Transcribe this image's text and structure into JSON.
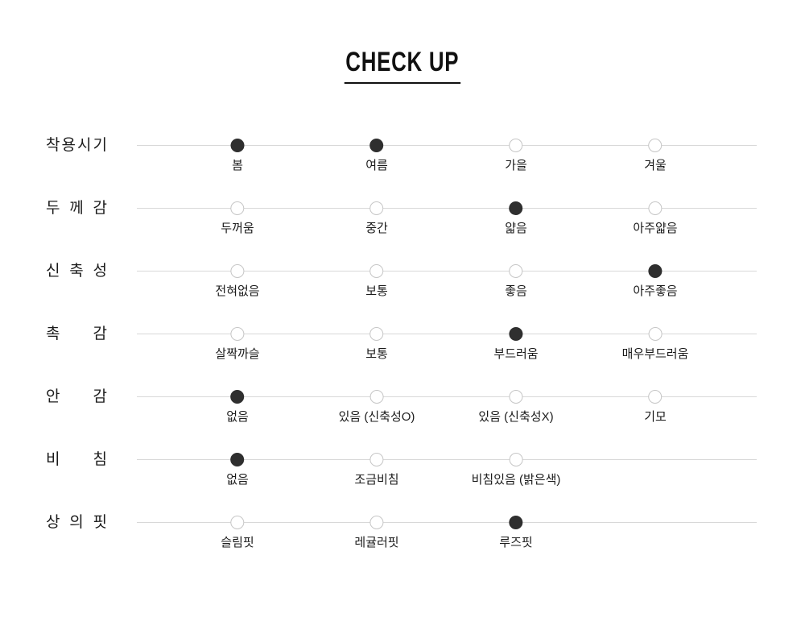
{
  "title": "CHECK UP",
  "chart_data": {
    "type": "table",
    "title": "CHECK UP",
    "description": "Product attribute check-up chart: each row is an attribute scale with one or more selected (filled) dots",
    "rows": [
      {
        "category": "착용시기",
        "options": [
          "봄",
          "여름",
          "가을",
          "겨울"
        ],
        "selected": [
          "봄",
          "여름"
        ]
      },
      {
        "category": "두께감",
        "options": [
          "두꺼움",
          "중간",
          "얇음",
          "아주얇음"
        ],
        "selected": [
          "얇음"
        ]
      },
      {
        "category": "신축성",
        "options": [
          "전혀없음",
          "보통",
          "좋음",
          "아주좋음"
        ],
        "selected": [
          "아주좋음"
        ]
      },
      {
        "category": "촉감",
        "options": [
          "살짝까슬",
          "보통",
          "부드러움",
          "매우부드러움"
        ],
        "selected": [
          "부드러움"
        ]
      },
      {
        "category": "안감",
        "options": [
          "없음",
          "있음 (신축성O)",
          "있음 (신축성X)",
          "기모"
        ],
        "selected": [
          "없음"
        ]
      },
      {
        "category": "비침",
        "options": [
          "없음",
          "조금비침",
          "비침있음 (밝은색)"
        ],
        "selected": [
          "없음"
        ]
      },
      {
        "category": "상의핏",
        "options": [
          "슬림핏",
          "레귤러핏",
          "루즈핏"
        ],
        "selected": [
          "루즈핏"
        ]
      }
    ],
    "legend": "filled dot = applies, empty dot = does not apply",
    "colors": {
      "selected_dot": "#2f2f2f",
      "unselected_dot_border": "#c6c6c6",
      "track_line": "#d8d8d8",
      "text": "#1b1b1b"
    }
  }
}
